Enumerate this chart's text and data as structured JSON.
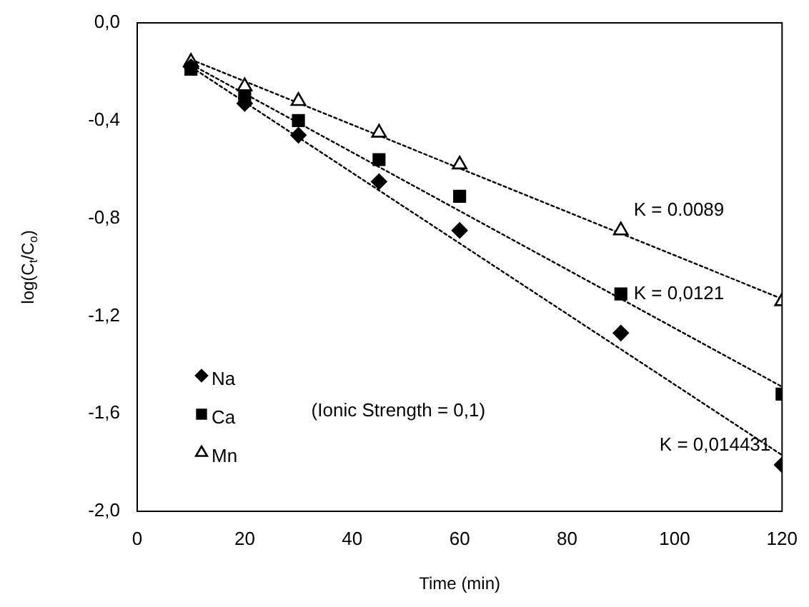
{
  "chart_data": {
    "type": "scatter",
    "xlabel": "Time (min)",
    "ylabel": "log(C$_{t}$/C$_{o}$)",
    "xlim": [
      0,
      120
    ],
    "xticks": [
      0,
      20,
      40,
      60,
      80,
      100,
      120
    ],
    "ylim": [
      -2.0,
      0.0
    ],
    "yticks": [
      {
        "value": 0.0,
        "label": "0,0"
      },
      {
        "value": -0.4,
        "label": "-0,4"
      },
      {
        "value": -0.8,
        "label": "-0,8"
      },
      {
        "value": -1.2,
        "label": "-1,2"
      },
      {
        "value": -1.6,
        "label": "-1,6"
      },
      {
        "value": -2.0,
        "label": "-2,0"
      }
    ],
    "grid": false,
    "legend": "bottom left",
    "series": [
      {
        "name": "Na",
        "color": "#000000",
        "marker": "diamond",
        "x": [
          10,
          20,
          30,
          45,
          60,
          90,
          120
        ],
        "values": [
          -0.18,
          -0.33,
          -0.46,
          -0.65,
          -0.85,
          -1.27,
          -1.81
        ]
      },
      {
        "name": "Ca",
        "color": "#000000",
        "marker": "square",
        "x": [
          10,
          20,
          30,
          45,
          60,
          90,
          120
        ],
        "values": [
          -0.19,
          -0.3,
          -0.4,
          -0.56,
          -0.71,
          -1.11,
          -1.52
        ]
      },
      {
        "name": "Mn",
        "color": "#000000",
        "marker": "triangle",
        "x": [
          10,
          20,
          30,
          45,
          60,
          90,
          120
        ],
        "values": [
          -0.16,
          -0.26,
          -0.32,
          -0.45,
          -0.58,
          -0.85,
          -1.14
        ]
      },
      {
        "type": "line",
        "color": "#000000",
        "line_style": "dotted",
        "marker": "none",
        "x": [
          10,
          120
        ],
        "values": [
          -0.18,
          -1.77
        ]
      },
      {
        "type": "line",
        "color": "#000000",
        "line_style": "dotted",
        "marker": "none",
        "x": [
          10,
          120
        ],
        "values": [
          -0.17,
          -1.49
        ]
      },
      {
        "type": "line",
        "color": "#000000",
        "line_style": "dotted",
        "marker": "none",
        "x": [
          10,
          120
        ],
        "values": [
          -0.15,
          -1.13
        ]
      }
    ],
    "annotations": [
      "K = 0.0089",
      "K = 0,0121",
      "K = 0,014431",
      "(Ionic Strength = 0,1)"
    ]
  }
}
